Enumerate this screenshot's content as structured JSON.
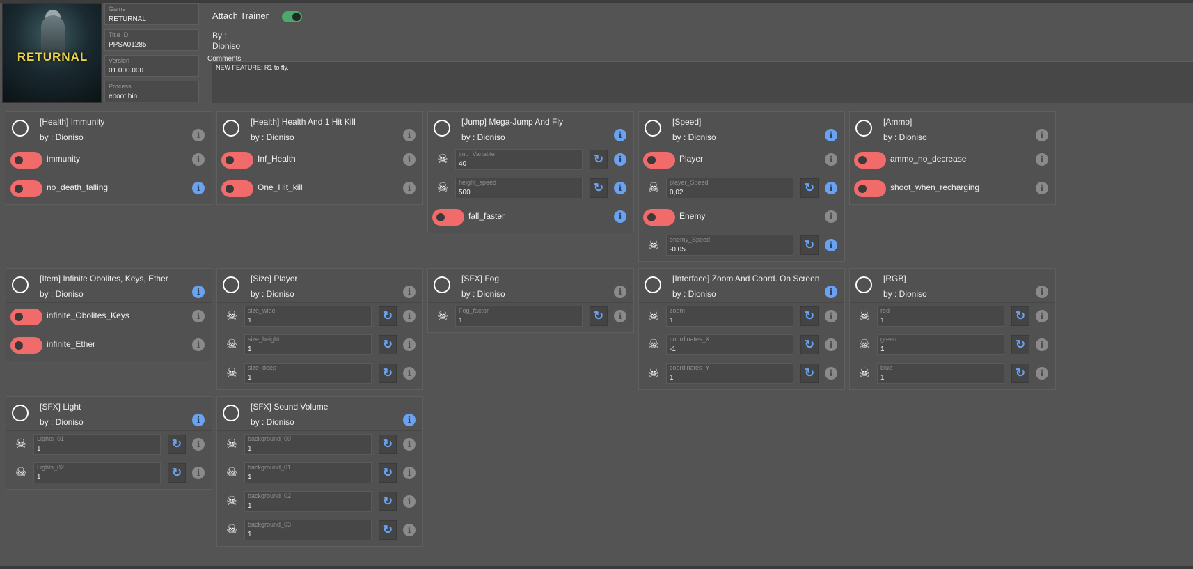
{
  "game": {
    "cover_logo": "RETURNAL",
    "fields": [
      {
        "label": "Game",
        "value": "RETURNAL"
      },
      {
        "label": "Title ID",
        "value": "PPSA01285"
      },
      {
        "label": "Version",
        "value": "01.000.000"
      },
      {
        "label": "Process",
        "value": "eboot.bin"
      }
    ]
  },
  "trainer": {
    "attach_label": "Attach Trainer",
    "attach_on": true,
    "by_label": "By :",
    "author": "Dioniso",
    "comments_label": "Comments",
    "comments": "NEW FEATURE: R1 to fly."
  },
  "cheats": [
    {
      "title": "[Health] Immunity",
      "by": "by : Dioniso",
      "info": "gray",
      "rows": [
        {
          "type": "toggle",
          "name": "immunity",
          "info": "gray"
        },
        {
          "type": "toggle",
          "name": "no_death_falling",
          "info": "blue"
        }
      ]
    },
    {
      "title": "[Health] Health And 1 Hit Kill",
      "by": "by : Dioniso",
      "info": "gray",
      "rows": [
        {
          "type": "toggle",
          "name": "Inf_Health",
          "info": "gray"
        },
        {
          "type": "toggle",
          "name": "One_Hit_kill",
          "info": "gray"
        }
      ]
    },
    {
      "title": "[Jump] Mega-Jump And Fly",
      "by": "by : Dioniso",
      "info": "blue",
      "rows": [
        {
          "type": "value",
          "name": "jmp_Variable",
          "value": "40",
          "info": "blue"
        },
        {
          "type": "value",
          "name": "height_speed",
          "value": "500",
          "info": "blue"
        },
        {
          "type": "toggle",
          "name": "fall_faster",
          "info": "blue"
        }
      ]
    },
    {
      "title": "[Speed]",
      "by": "by : Dioniso",
      "info": "blue",
      "rows": [
        {
          "type": "toggle",
          "name": "Player",
          "info": "gray"
        },
        {
          "type": "value",
          "name": "player_Speed",
          "value": "0,02",
          "info": "blue"
        },
        {
          "type": "toggle",
          "name": "Enemy",
          "info": "gray"
        },
        {
          "type": "value",
          "name": "enemy_Speed",
          "value": "-0,05",
          "info": "blue"
        }
      ]
    },
    {
      "title": "[Ammo]",
      "by": "by : Dioniso",
      "info": "gray",
      "rows": [
        {
          "type": "toggle",
          "name": "ammo_no_decrease",
          "info": "gray"
        },
        {
          "type": "toggle",
          "name": "shoot_when_recharging",
          "info": "gray"
        }
      ]
    },
    {
      "title": "[Item] Infinite Obolites, Keys, Ether",
      "by": "by : Dioniso",
      "info": "blue",
      "rows": [
        {
          "type": "toggle",
          "name": "infinite_Obolites_Keys",
          "info": "gray"
        },
        {
          "type": "toggle",
          "name": "infinite_Ether",
          "info": "gray"
        }
      ]
    },
    {
      "title": "[Size] Player",
      "by": "by : Dioniso",
      "info": "gray",
      "rows": [
        {
          "type": "value",
          "name": "size_wide",
          "value": "1",
          "info": "gray"
        },
        {
          "type": "value",
          "name": "size_height",
          "value": "1",
          "info": "gray"
        },
        {
          "type": "value",
          "name": "size_deep",
          "value": "1",
          "info": "gray"
        }
      ]
    },
    {
      "title": "[SFX] Fog",
      "by": "by : Dioniso",
      "info": "gray",
      "rows": [
        {
          "type": "value",
          "name": "Fog_factor",
          "value": "1",
          "info": "gray"
        }
      ]
    },
    {
      "title": "[Interface] Zoom And Coord. On Screen",
      "by": "by : Dioniso",
      "info": "blue",
      "rows": [
        {
          "type": "value",
          "name": "zoom",
          "value": "1",
          "info": "gray"
        },
        {
          "type": "value",
          "name": "coordinates_X",
          "value": "-1",
          "info": "gray"
        },
        {
          "type": "value",
          "name": "coordinates_Y",
          "value": "1",
          "info": "gray"
        }
      ]
    },
    {
      "title": "[RGB]",
      "by": "by : Dioniso",
      "info": "gray",
      "rows": [
        {
          "type": "value",
          "name": "red",
          "value": "1",
          "info": "gray"
        },
        {
          "type": "value",
          "name": "green",
          "value": "1",
          "info": "gray"
        },
        {
          "type": "value",
          "name": "blue",
          "value": "1",
          "info": "gray"
        }
      ]
    },
    {
      "title": "[SFX] Light",
      "by": "by : Dioniso",
      "info": "blue",
      "rows": [
        {
          "type": "value",
          "name": "Lights_01",
          "value": "1",
          "info": "gray"
        },
        {
          "type": "value",
          "name": "Lights_02",
          "value": "1",
          "info": "gray"
        }
      ]
    },
    {
      "title": "[SFX] Sound Volume",
      "by": "by : Dioniso",
      "info": "blue",
      "rows": [
        {
          "type": "value",
          "name": "background_00",
          "value": "1",
          "info": "gray"
        },
        {
          "type": "value",
          "name": "background_01",
          "value": "1",
          "info": "gray"
        },
        {
          "type": "value",
          "name": "background_02",
          "value": "1",
          "info": "gray"
        },
        {
          "type": "value",
          "name": "background_03",
          "value": "1",
          "info": "gray"
        }
      ]
    }
  ]
}
